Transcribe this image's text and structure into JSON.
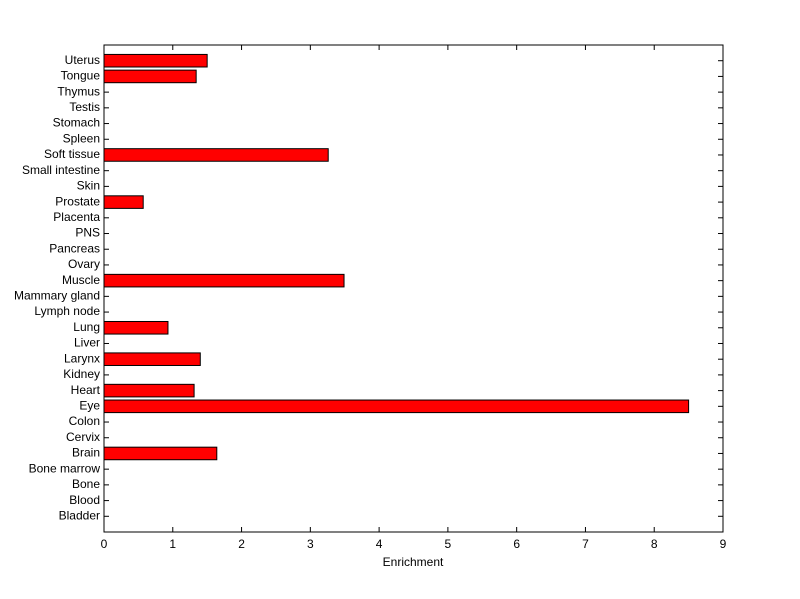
{
  "chart_data": {
    "type": "barh",
    "xlabel": "Enrichment",
    "categories": [
      "Bladder",
      "Blood",
      "Bone",
      "Bone marrow",
      "Brain",
      "Cervix",
      "Colon",
      "Eye",
      "Heart",
      "Kidney",
      "Larynx",
      "Liver",
      "Lung",
      "Lymph node",
      "Mammary gland",
      "Muscle",
      "Ovary",
      "Pancreas",
      "PNS",
      "Placenta",
      "Prostate",
      "Skin",
      "Small intestine",
      "Soft tissue",
      "Spleen",
      "Stomach",
      "Testis",
      "Thymus",
      "Tongue",
      "Uterus"
    ],
    "values": [
      0,
      0,
      0,
      0,
      1.64,
      0,
      0,
      8.5,
      1.31,
      0,
      1.4,
      0,
      0.93,
      0,
      0,
      3.49,
      0,
      0,
      0,
      0,
      0.57,
      0,
      0,
      3.26,
      0,
      0,
      0,
      0,
      1.34,
      1.5
    ],
    "color": "#ff0000",
    "xlim": [
      0,
      9
    ],
    "xticks": [
      0,
      1,
      2,
      3,
      4,
      5,
      6,
      7,
      8,
      9
    ]
  }
}
